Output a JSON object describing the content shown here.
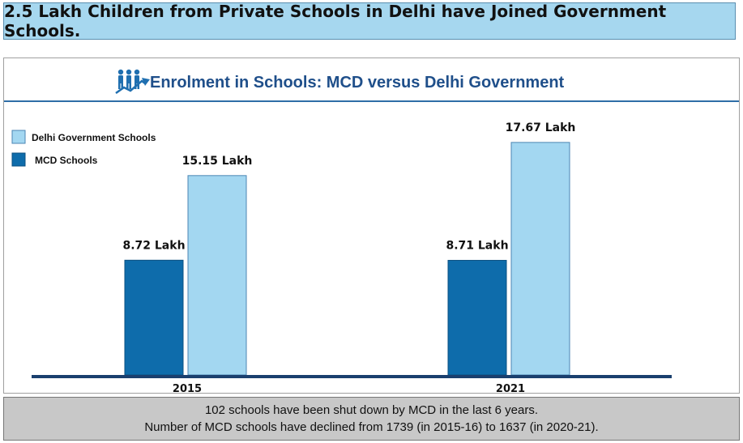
{
  "headline": "2.5 Lakh Children from Private Schools in Delhi have Joined Government Schools.",
  "icon": "people-growth-icon",
  "colors": {
    "mcd": "#0e6cab",
    "delhi_gov": "#a3d7f1",
    "axis": "#1a3f6e",
    "title": "#1f4f8a"
  },
  "chart_data": {
    "type": "bar",
    "title": "Enrolment in Schools: MCD versus Delhi Government",
    "categories": [
      "2015",
      "2021"
    ],
    "series": [
      {
        "name": "MCD Schools",
        "values": [
          8.72,
          8.71
        ],
        "labels": [
          "8.72 Lakh",
          "8.71 Lakh"
        ],
        "color": "#0e6cab"
      },
      {
        "name": "Delhi Government Schools",
        "values": [
          15.15,
          17.67
        ],
        "labels": [
          "15.15 Lakh",
          "17.67 Lakh"
        ],
        "color": "#a3d7f1"
      }
    ],
    "legend": [
      "Delhi Government Schools",
      "MCD Schools"
    ],
    "legend_position": "top-left",
    "ylim": [
      0,
      18.5
    ],
    "grid": false
  },
  "footer": {
    "line1": "102 schools have been shut down by MCD in the last 6 years.",
    "line2": "Number of MCD schools have declined from 1739 (in 2015-16) to 1637 (in 2020-21)."
  }
}
